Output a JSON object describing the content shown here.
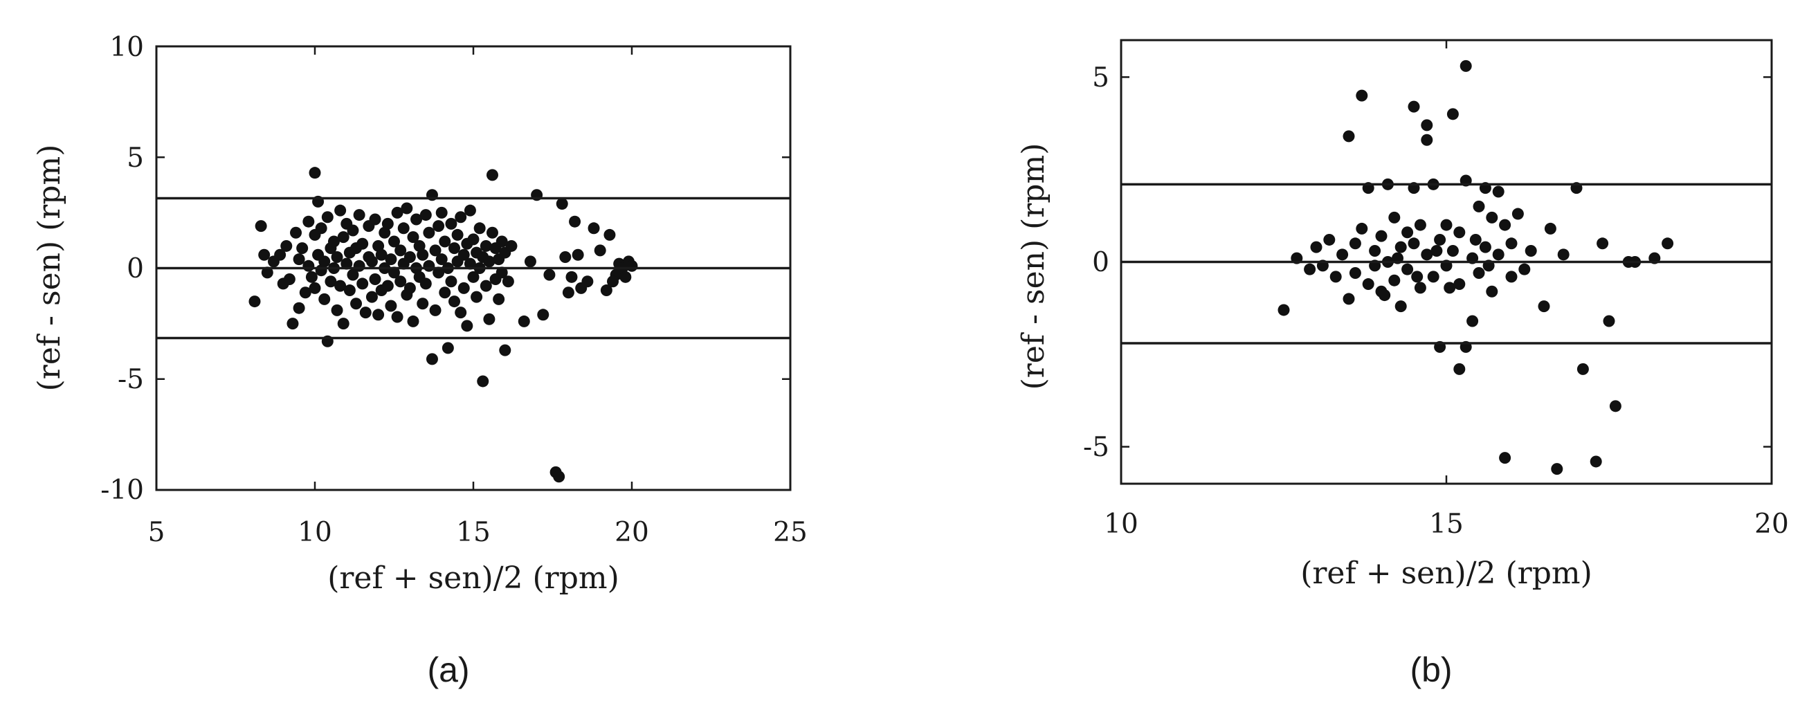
{
  "chart_data": [
    {
      "type": "scatter",
      "caption": "(a)",
      "xlabel": "(ref + sen)/2 (rpm)",
      "ylabel": "(ref - sen) (rpm)",
      "xlim": [
        5,
        25
      ],
      "ylim": [
        -10,
        10
      ],
      "xticks": [
        5,
        10,
        15,
        20,
        25
      ],
      "yticks": [
        -10,
        -5,
        0,
        5,
        10
      ],
      "hlines": [
        3.15,
        0,
        -3.15
      ],
      "grid": false,
      "point_color": "#111111",
      "points": [
        [
          8.1,
          -1.5
        ],
        [
          8.3,
          1.9
        ],
        [
          8.4,
          0.6
        ],
        [
          8.5,
          -0.2
        ],
        [
          8.7,
          0.3
        ],
        [
          8.9,
          0.6
        ],
        [
          9.0,
          -0.7
        ],
        [
          9.1,
          1.0
        ],
        [
          9.2,
          -0.5
        ],
        [
          9.3,
          -2.5
        ],
        [
          9.4,
          1.6
        ],
        [
          9.5,
          0.4
        ],
        [
          9.5,
          -1.8
        ],
        [
          9.6,
          0.9
        ],
        [
          9.7,
          -1.1
        ],
        [
          9.8,
          2.1
        ],
        [
          9.8,
          0.1
        ],
        [
          9.9,
          -0.4
        ],
        [
          10.0,
          4.3
        ],
        [
          10.0,
          1.5
        ],
        [
          10.0,
          -0.9
        ],
        [
          10.1,
          0.6
        ],
        [
          10.1,
          3.0
        ],
        [
          10.2,
          -0.1
        ],
        [
          10.2,
          1.8
        ],
        [
          10.3,
          0.3
        ],
        [
          10.3,
          -1.4
        ],
        [
          10.4,
          2.3
        ],
        [
          10.4,
          -3.3
        ],
        [
          10.5,
          0.9
        ],
        [
          10.5,
          -0.6
        ],
        [
          10.6,
          1.2
        ],
        [
          10.6,
          0.0
        ],
        [
          10.7,
          -1.9
        ],
        [
          10.7,
          0.5
        ],
        [
          10.8,
          2.6
        ],
        [
          10.8,
          -0.8
        ],
        [
          10.9,
          1.4
        ],
        [
          10.9,
          -2.5
        ],
        [
          11.0,
          0.2
        ],
        [
          11.0,
          2.0
        ],
        [
          11.1,
          -1.0
        ],
        [
          11.1,
          0.7
        ],
        [
          11.2,
          1.7
        ],
        [
          11.2,
          -0.3
        ],
        [
          11.3,
          0.9
        ],
        [
          11.3,
          -1.6
        ],
        [
          11.4,
          2.4
        ],
        [
          11.4,
          0.1
        ],
        [
          11.5,
          -0.7
        ],
        [
          11.5,
          1.1
        ],
        [
          11.6,
          -2.0
        ],
        [
          11.7,
          0.5
        ],
        [
          11.7,
          1.9
        ],
        [
          11.8,
          -1.3
        ],
        [
          11.8,
          0.3
        ],
        [
          11.9,
          2.2
        ],
        [
          11.9,
          -0.5
        ],
        [
          12.0,
          1.0
        ],
        [
          12.0,
          -2.1
        ],
        [
          12.1,
          0.6
        ],
        [
          12.1,
          -1.0
        ],
        [
          12.2,
          1.6
        ],
        [
          12.2,
          0.0
        ],
        [
          12.3,
          -0.8
        ],
        [
          12.3,
          2.0
        ],
        [
          12.4,
          0.4
        ],
        [
          12.4,
          -1.7
        ],
        [
          12.5,
          1.2
        ],
        [
          12.5,
          -0.2
        ],
        [
          12.6,
          2.5
        ],
        [
          12.6,
          -2.2
        ],
        [
          12.7,
          0.8
        ],
        [
          12.7,
          -0.6
        ],
        [
          12.8,
          1.8
        ],
        [
          12.8,
          0.2
        ],
        [
          12.9,
          -1.2
        ],
        [
          12.9,
          2.7
        ],
        [
          13.0,
          0.5
        ],
        [
          13.0,
          -0.9
        ],
        [
          13.1,
          1.4
        ],
        [
          13.1,
          -2.4
        ],
        [
          13.2,
          0.0
        ],
        [
          13.2,
          2.2
        ],
        [
          13.3,
          -0.4
        ],
        [
          13.3,
          1.0
        ],
        [
          13.4,
          -1.6
        ],
        [
          13.4,
          0.6
        ],
        [
          13.5,
          2.4
        ],
        [
          13.5,
          -0.7
        ],
        [
          13.6,
          1.6
        ],
        [
          13.6,
          0.1
        ],
        [
          13.7,
          -4.1
        ],
        [
          13.7,
          3.3
        ],
        [
          13.8,
          0.8
        ],
        [
          13.8,
          -1.9
        ],
        [
          13.9,
          1.9
        ],
        [
          13.9,
          -0.2
        ],
        [
          14.0,
          2.5
        ],
        [
          14.0,
          0.4
        ],
        [
          14.1,
          -1.1
        ],
        [
          14.1,
          1.2
        ],
        [
          14.2,
          -3.6
        ],
        [
          14.2,
          0.0
        ],
        [
          14.3,
          2.0
        ],
        [
          14.3,
          -0.6
        ],
        [
          14.4,
          0.9
        ],
        [
          14.4,
          -1.5
        ],
        [
          14.5,
          1.5
        ],
        [
          14.5,
          0.3
        ],
        [
          14.6,
          -2.0
        ],
        [
          14.6,
          2.3
        ],
        [
          14.7,
          0.6
        ],
        [
          14.7,
          -0.9
        ],
        [
          14.8,
          1.1
        ],
        [
          14.8,
          -2.6
        ],
        [
          14.9,
          0.2
        ],
        [
          14.9,
          2.6
        ],
        [
          15.0,
          -0.4
        ],
        [
          15.0,
          1.3
        ],
        [
          15.1,
          0.7
        ],
        [
          15.1,
          -1.3
        ],
        [
          15.2,
          0.0
        ],
        [
          15.2,
          1.8
        ],
        [
          15.3,
          -5.1
        ],
        [
          15.3,
          0.5
        ],
        [
          15.4,
          -0.8
        ],
        [
          15.4,
          1.0
        ],
        [
          15.5,
          -2.3
        ],
        [
          15.5,
          0.3
        ],
        [
          15.6,
          4.2
        ],
        [
          15.6,
          1.6
        ],
        [
          15.7,
          -0.5
        ],
        [
          15.7,
          0.9
        ],
        [
          15.8,
          -1.4
        ],
        [
          15.8,
          0.4
        ],
        [
          15.9,
          1.2
        ],
        [
          15.9,
          -0.2
        ],
        [
          16.0,
          -3.7
        ],
        [
          16.0,
          0.7
        ],
        [
          16.1,
          -0.6
        ],
        [
          16.2,
          1.0
        ],
        [
          16.6,
          -2.4
        ],
        [
          16.8,
          0.3
        ],
        [
          17.0,
          3.3
        ],
        [
          17.2,
          -2.1
        ],
        [
          17.4,
          -0.3
        ],
        [
          17.6,
          -9.2
        ],
        [
          17.7,
          -9.4
        ],
        [
          17.8,
          2.9
        ],
        [
          17.9,
          0.5
        ],
        [
          18.0,
          -1.1
        ],
        [
          18.1,
          -0.4
        ],
        [
          18.2,
          2.1
        ],
        [
          18.3,
          0.6
        ],
        [
          18.4,
          -0.9
        ],
        [
          18.6,
          -0.6
        ],
        [
          18.8,
          1.8
        ],
        [
          19.0,
          0.8
        ],
        [
          19.2,
          -1.0
        ],
        [
          19.3,
          1.5
        ],
        [
          19.5,
          -0.3
        ],
        [
          19.6,
          0.2
        ],
        [
          19.7,
          0.0
        ],
        [
          19.8,
          -0.4
        ],
        [
          19.9,
          0.3
        ],
        [
          20.0,
          0.1
        ],
        [
          19.4,
          -0.6
        ]
      ]
    },
    {
      "type": "scatter",
      "caption": "(b)",
      "xlabel": "(ref + sen)/2 (rpm)",
      "ylabel": "(ref - sen) (rpm)",
      "xlim": [
        10,
        20
      ],
      "ylim": [
        -6,
        6
      ],
      "xticks": [
        10,
        15,
        20
      ],
      "yticks": [
        -5,
        0,
        5
      ],
      "hlines": [
        2.1,
        0,
        -2.2
      ],
      "grid": false,
      "point_color": "#111111",
      "points": [
        [
          12.5,
          -1.3
        ],
        [
          12.7,
          0.1
        ],
        [
          12.9,
          -0.2
        ],
        [
          13.0,
          0.4
        ],
        [
          13.1,
          -0.1
        ],
        [
          13.2,
          0.6
        ],
        [
          13.3,
          -0.4
        ],
        [
          13.4,
          0.2
        ],
        [
          13.5,
          3.4
        ],
        [
          13.5,
          -1.0
        ],
        [
          13.6,
          0.5
        ],
        [
          13.6,
          -0.3
        ],
        [
          13.7,
          4.5
        ],
        [
          13.7,
          0.9
        ],
        [
          13.8,
          2.0
        ],
        [
          13.8,
          -0.6
        ],
        [
          13.9,
          0.3
        ],
        [
          13.9,
          -0.1
        ],
        [
          14.0,
          0.7
        ],
        [
          14.0,
          -0.8
        ],
        [
          14.1,
          2.1
        ],
        [
          14.1,
          0.0
        ],
        [
          14.2,
          1.2
        ],
        [
          14.2,
          -0.5
        ],
        [
          14.3,
          0.4
        ],
        [
          14.3,
          -1.2
        ],
        [
          14.4,
          0.8
        ],
        [
          14.4,
          -0.2
        ],
        [
          14.5,
          4.2
        ],
        [
          14.5,
          2.0
        ],
        [
          14.5,
          0.5
        ],
        [
          14.6,
          -0.7
        ],
        [
          14.6,
          1.0
        ],
        [
          14.7,
          3.7
        ],
        [
          14.7,
          3.3
        ],
        [
          14.7,
          0.2
        ],
        [
          14.8,
          2.1
        ],
        [
          14.8,
          -0.4
        ],
        [
          14.9,
          -2.3
        ],
        [
          14.9,
          0.6
        ],
        [
          15.0,
          1.0
        ],
        [
          15.0,
          -0.1
        ],
        [
          15.1,
          4.0
        ],
        [
          15.1,
          0.3
        ],
        [
          15.2,
          -2.9
        ],
        [
          15.2,
          -0.6
        ],
        [
          15.2,
          0.8
        ],
        [
          15.3,
          2.2
        ],
        [
          15.3,
          -2.3
        ],
        [
          15.3,
          5.3
        ],
        [
          15.4,
          0.1
        ],
        [
          15.4,
          -1.6
        ],
        [
          15.5,
          1.5
        ],
        [
          15.5,
          -0.3
        ],
        [
          15.6,
          2.0
        ],
        [
          15.6,
          0.4
        ],
        [
          15.7,
          1.2
        ],
        [
          15.7,
          -0.8
        ],
        [
          15.8,
          1.9
        ],
        [
          15.8,
          0.2
        ],
        [
          15.9,
          -5.3
        ],
        [
          15.9,
          1.0
        ],
        [
          16.0,
          -0.4
        ],
        [
          16.0,
          0.5
        ],
        [
          16.1,
          1.3
        ],
        [
          16.2,
          -0.2
        ],
        [
          16.3,
          0.3
        ],
        [
          16.5,
          -1.2
        ],
        [
          16.6,
          0.9
        ],
        [
          16.7,
          -5.6
        ],
        [
          16.8,
          0.2
        ],
        [
          17.0,
          2.0
        ],
        [
          17.1,
          -2.9
        ],
        [
          17.3,
          -5.4
        ],
        [
          17.4,
          0.5
        ],
        [
          17.5,
          -1.6
        ],
        [
          17.6,
          -3.9
        ],
        [
          17.8,
          0.0
        ],
        [
          17.9,
          0.0
        ],
        [
          18.2,
          0.1
        ],
        [
          18.4,
          0.5
        ],
        [
          14.05,
          -0.9
        ],
        [
          14.25,
          0.1
        ],
        [
          14.55,
          -0.4
        ],
        [
          14.85,
          0.3
        ],
        [
          15.05,
          -0.7
        ],
        [
          15.45,
          0.6
        ],
        [
          15.65,
          -0.1
        ]
      ]
    }
  ]
}
